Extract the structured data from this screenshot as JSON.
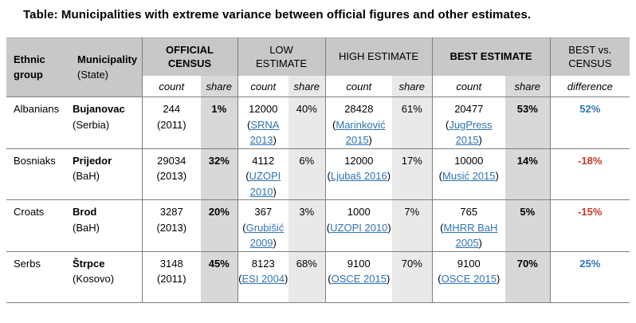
{
  "title": "Table: Municipalities with extreme variance between official figures and other estimates.",
  "colors": {
    "link": "#2e74b5",
    "positive": "#2e74b5",
    "negative": "#c0392b",
    "header_bg": "#c8c8c8",
    "share_strong": "#d8d8d8",
    "share_light": "#e9e9e9"
  },
  "header": {
    "ethnic_group": "Ethnic group",
    "municipality": "Municipality",
    "municipality_sub": "(State)",
    "official_census": "OFFICIAL CENSUS",
    "low_estimate": "LOW ESTIMATE",
    "high_estimate": "HIGH ESTIMATE",
    "best_estimate": "BEST ESTIMATE",
    "best_vs_census": "BEST vs. CENSUS",
    "count_label": "count",
    "share_label": "share",
    "difference_label": "difference"
  },
  "rows": [
    {
      "ethnic_group": "Albanians",
      "municipality": "Bujanovac",
      "state": "(Serbia)",
      "official": {
        "count": "244",
        "note": "(2011)",
        "share": "1%"
      },
      "low": {
        "count": "12000",
        "source": "SRNA 2013",
        "share": "40%"
      },
      "high": {
        "count": "28428",
        "source": "Marinković 2015",
        "share": "61%"
      },
      "best": {
        "count": "20477",
        "source": "JugPress 2015",
        "share": "53%"
      },
      "difference": {
        "value": "52%",
        "trend": "positive"
      }
    },
    {
      "ethnic_group": "Bosniaks",
      "municipality": "Prijedor",
      "state": "(BaH)",
      "official": {
        "count": "29034",
        "note": "(2013)",
        "share": "32%"
      },
      "low": {
        "count": "4112",
        "source": "UZOPI 2010",
        "share": "6%"
      },
      "high": {
        "count": "12000",
        "source": "Ljubaš 2016",
        "share": "17%"
      },
      "best": {
        "count": "10000",
        "source": "Musić 2015",
        "share": "14%"
      },
      "difference": {
        "value": "-18%",
        "trend": "negative"
      }
    },
    {
      "ethnic_group": "Croats",
      "municipality": "Brod",
      "state": "(BaH)",
      "official": {
        "count": "3287",
        "note": "(2013)",
        "share": "20%"
      },
      "low": {
        "count": "367",
        "source": "Grubišić 2009",
        "share": "3%"
      },
      "high": {
        "count": "1000",
        "source": "UZOPI 2010",
        "share": "7%"
      },
      "best": {
        "count": "765",
        "source": "MHRR BaH 2005",
        "share": "5%"
      },
      "difference": {
        "value": "-15%",
        "trend": "negative"
      }
    },
    {
      "ethnic_group": "Serbs",
      "municipality": "Štrpce",
      "state": "(Kosovo)",
      "official": {
        "count": "3148",
        "note": "(2011)",
        "share": "45%"
      },
      "low": {
        "count": "8123",
        "source": "ESI 2004",
        "share": "68%"
      },
      "high": {
        "count": "9100",
        "source": "OSCE 2015",
        "share": "70%"
      },
      "best": {
        "count": "9100",
        "source": "OSCE 2015",
        "share": "70%"
      },
      "difference": {
        "value": "25%",
        "trend": "positive"
      }
    }
  ]
}
